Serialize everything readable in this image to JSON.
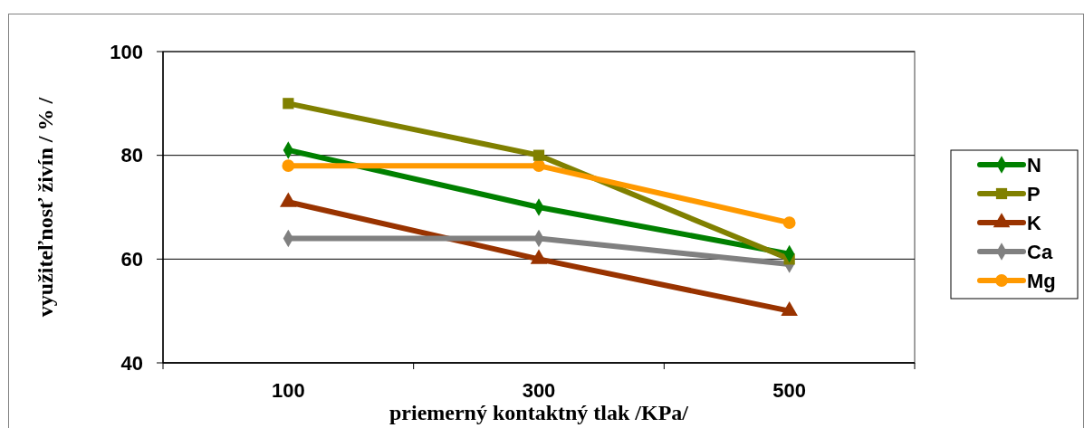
{
  "chart_data": {
    "type": "line",
    "xlabel": "priemerný kontaktný tlak /KPa/",
    "ylabel": "využiteľnosť živín / % /",
    "categories": [
      "100",
      "300",
      "500"
    ],
    "series": [
      {
        "name": "N",
        "color": "#008000",
        "marker": "diamond",
        "values": [
          81,
          70,
          61
        ]
      },
      {
        "name": "P",
        "color": "#808000",
        "marker": "square",
        "values": [
          90,
          80,
          60
        ]
      },
      {
        "name": "K",
        "color": "#993300",
        "marker": "triangle",
        "values": [
          71,
          60,
          50
        ]
      },
      {
        "name": "Ca",
        "color": "#808080",
        "marker": "diamond",
        "values": [
          64,
          64,
          59
        ]
      },
      {
        "name": "Mg",
        "color": "#ff9900",
        "marker": "circle",
        "values": [
          78,
          78,
          67
        ]
      }
    ],
    "ylim": [
      40,
      100
    ],
    "yticks": [
      40,
      60,
      80,
      100
    ],
    "grid": "y",
    "legend": "right"
  }
}
